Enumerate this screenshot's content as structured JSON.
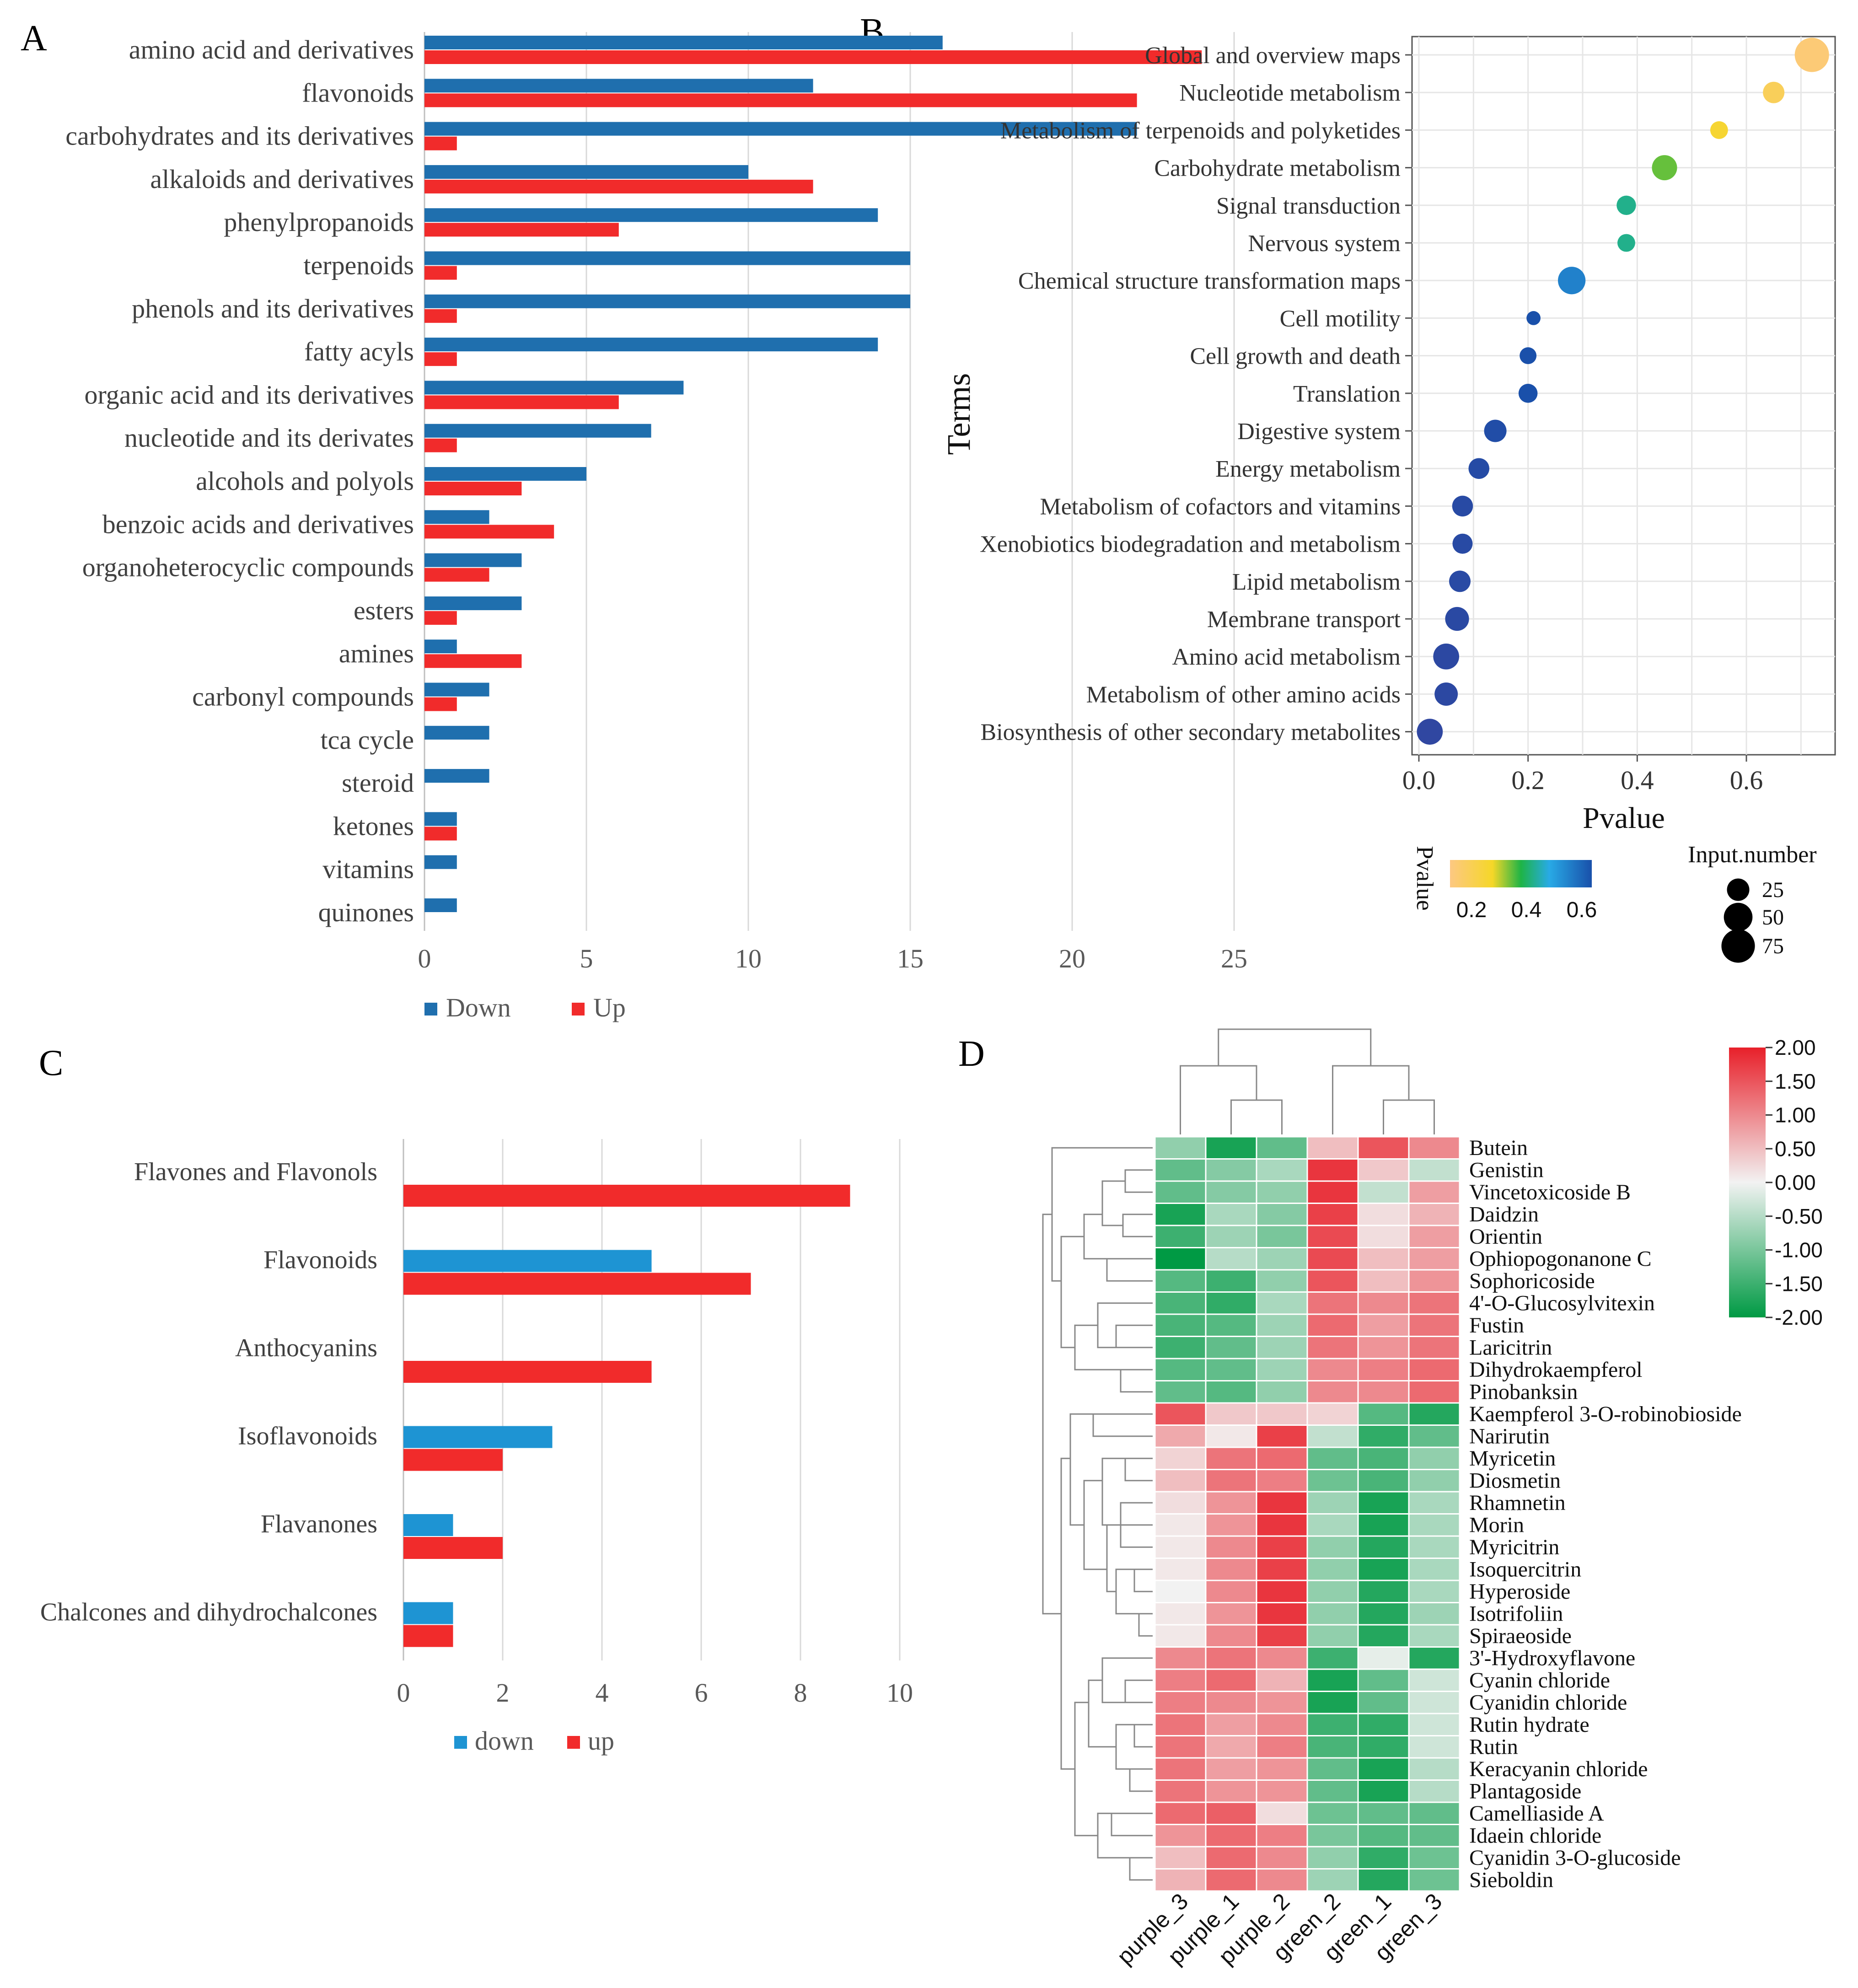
{
  "panels": {
    "A": "A",
    "B": "B",
    "C": "C",
    "D": "D"
  },
  "chart_data": [
    {
      "id": "A",
      "type": "bar",
      "orientation": "horizontal",
      "categories": [
        "amino acid and derivatives",
        "flavonoids",
        "carbohydrates and its derivatives",
        "alkaloids and derivatives",
        "phenylpropanoids",
        "terpenoids",
        "phenols and its derivatives",
        "fatty acyls",
        "organic acid and its derivatives",
        "nucleotide and its derivates",
        "alcohols and polyols",
        "benzoic acids and derivatives",
        "organoheterocyclic compounds",
        "esters",
        "amines",
        "carbonyl compounds",
        "tca cycle",
        "steroid",
        "ketones",
        "vitamins",
        "quinones"
      ],
      "series": [
        {
          "name": "Down",
          "color": "#1f6fae",
          "values": [
            16,
            12,
            22,
            10,
            14,
            15,
            15,
            14,
            8,
            7,
            5,
            2,
            3,
            3,
            1,
            2,
            2,
            2,
            1,
            1,
            1
          ]
        },
        {
          "name": "Up",
          "color": "#f12b2b",
          "values": [
            24,
            22,
            1,
            12,
            6,
            1,
            1,
            1,
            6,
            1,
            3,
            4,
            2,
            1,
            3,
            1,
            0,
            0,
            1,
            0,
            0
          ]
        }
      ],
      "xlim": [
        0,
        25
      ],
      "xticks": [
        0,
        5,
        10,
        15,
        20,
        25
      ],
      "grid": true,
      "legend": "bottom"
    },
    {
      "id": "B",
      "type": "scatter",
      "ylabel": "Terms",
      "xlabel": "Pvalue",
      "xlim": [
        0,
        0.75
      ],
      "xticks": [
        0.0,
        0.2,
        0.4,
        0.6
      ],
      "xtick_labels": [
        "0.0",
        "0.2",
        "0.4",
        "0.6"
      ],
      "terms": [
        "Global and overview maps",
        "Nucleotide metabolism",
        "Metabolism of terpenoids and polyketides",
        "Carbohydrate metabolism",
        "Signal transduction",
        "Nervous system",
        "Chemical structure transformation maps",
        "Cell motility",
        "Cell growth and death",
        "Translation",
        "Digestive system",
        "Energy metabolism",
        "Metabolism of cofactors and vitamins",
        "Xenobiotics biodegradation and metabolism",
        "Lipid metabolism",
        "Membrane transport",
        "Amino acid metabolism",
        "Metabolism of other amino acids",
        "Biosynthesis of other secondary metabolites"
      ],
      "pvalues": [
        0.72,
        0.65,
        0.55,
        0.45,
        0.38,
        0.38,
        0.28,
        0.21,
        0.2,
        0.2,
        0.14,
        0.11,
        0.08,
        0.08,
        0.075,
        0.07,
        0.05,
        0.05,
        0.02
      ],
      "input_numbers": [
        80,
        22,
        12,
        35,
        16,
        12,
        45,
        5,
        10,
        15,
        25,
        20,
        20,
        18,
        22,
        30,
        38,
        28,
        38
      ],
      "legend_color_title": "Pvalue",
      "legend_color_ticks": [
        "0.2",
        "0.4",
        "0.6"
      ],
      "legend_size_title": "Input.number",
      "legend_size_ticks": [
        "25",
        "50",
        "75"
      ],
      "legend_size_values": [
        25,
        50,
        75
      ]
    },
    {
      "id": "C",
      "type": "bar",
      "orientation": "horizontal",
      "categories": [
        "Flavones and Flavonols",
        "Flavonoids",
        "Anthocyanins",
        "Isoflavonoids",
        "Flavanones",
        "Chalcones and dihydrochalcones"
      ],
      "series": [
        {
          "name": "down",
          "color": "#1e94d3",
          "values": [
            0,
            5,
            0,
            3,
            1,
            1
          ]
        },
        {
          "name": "up",
          "color": "#f12b2b",
          "values": [
            9,
            7,
            5,
            2,
            2,
            1
          ]
        }
      ],
      "xlim": [
        0,
        10
      ],
      "xticks": [
        0,
        2,
        4,
        6,
        8,
        10
      ],
      "grid": true,
      "legend": "bottom"
    },
    {
      "id": "D",
      "type": "heatmap",
      "columns": [
        "purple_3",
        "purple_1",
        "purple_2",
        "green_2",
        "green_1",
        "green_3"
      ],
      "rows": [
        "Butein",
        "Genistin",
        "Vincetoxicoside B",
        "Daidzin",
        "Orientin",
        "Ophiopogonanone C",
        "Sophoricoside",
        "4'-O-Glucosylvitexin",
        "Fustin",
        "Laricitrin",
        "Dihydrokaempferol",
        "Pinobanksin",
        "Kaempferol 3-O-robinobioside",
        "Narirutin",
        "Myricetin",
        "Diosmetin",
        "Rhamnetin",
        "Morin",
        "Myricitrin",
        "Isoquercitrin",
        "Hyperoside",
        "Isotrifoliin",
        "Spiraeoside",
        "3'-Hydroxyflavone",
        "Cyanin chloride",
        "Cyanidin chloride",
        "Rutin hydrate",
        "Rutin",
        "Keracyanin chloride",
        "Plantagoside",
        "Camelliaside A",
        "Idaein chloride",
        "Cyanidin 3-O-glucoside",
        "Sieboldin"
      ],
      "values": [
        [
          -0.8,
          -1.8,
          -1.2,
          0.5,
          1.5,
          1.0
        ],
        [
          -1.2,
          -0.9,
          -0.6,
          1.8,
          0.4,
          -0.4
        ],
        [
          -1.2,
          -0.9,
          -0.8,
          1.8,
          -0.4,
          0.8
        ],
        [
          -1.8,
          -0.6,
          -0.9,
          1.7,
          0.2,
          0.6
        ],
        [
          -1.5,
          -0.7,
          -1.0,
          1.6,
          0.2,
          0.8
        ],
        [
          -2.0,
          -0.5,
          -0.7,
          1.6,
          0.5,
          0.8
        ],
        [
          -1.3,
          -1.5,
          -0.8,
          1.5,
          0.5,
          0.9
        ],
        [
          -1.4,
          -1.6,
          -0.6,
          1.2,
          1.0,
          1.2
        ],
        [
          -1.4,
          -1.3,
          -0.7,
          1.3,
          0.8,
          1.2
        ],
        [
          -1.5,
          -1.2,
          -0.7,
          1.2,
          0.9,
          1.2
        ],
        [
          -1.3,
          -1.2,
          -0.7,
          1.0,
          1.1,
          1.3
        ],
        [
          -1.2,
          -1.3,
          -0.8,
          1.0,
          1.0,
          1.3
        ],
        [
          1.5,
          0.4,
          0.4,
          0.3,
          -1.3,
          -1.7
        ],
        [
          0.7,
          0.1,
          1.7,
          -0.4,
          -1.6,
          -1.2
        ],
        [
          0.3,
          1.2,
          1.3,
          -1.2,
          -1.4,
          -0.8
        ],
        [
          0.5,
          1.2,
          1.1,
          -1.1,
          -1.4,
          -0.8
        ],
        [
          0.2,
          0.9,
          1.8,
          -0.7,
          -1.8,
          -0.6
        ],
        [
          0.1,
          0.9,
          1.8,
          -0.6,
          -1.8,
          -0.6
        ],
        [
          0.1,
          1.0,
          1.7,
          -0.8,
          -1.7,
          -0.6
        ],
        [
          0.1,
          1.0,
          1.7,
          -0.8,
          -1.8,
          -0.6
        ],
        [
          0.0,
          1.0,
          1.8,
          -0.8,
          -1.7,
          -0.6
        ],
        [
          0.1,
          0.9,
          1.8,
          -0.8,
          -1.7,
          -0.7
        ],
        [
          0.1,
          1.0,
          1.7,
          -0.8,
          -1.7,
          -0.6
        ],
        [
          1.0,
          1.2,
          1.0,
          -1.5,
          -0.1,
          -1.7
        ],
        [
          1.1,
          1.3,
          0.6,
          -1.8,
          -1.2,
          -0.3
        ],
        [
          1.1,
          1.0,
          0.9,
          -1.8,
          -1.2,
          -0.3
        ],
        [
          1.2,
          0.8,
          1.0,
          -1.5,
          -1.6,
          -0.3
        ],
        [
          1.2,
          0.7,
          1.1,
          -1.4,
          -1.6,
          -0.3
        ],
        [
          1.2,
          0.8,
          0.9,
          -1.2,
          -1.8,
          -0.5
        ],
        [
          1.2,
          0.9,
          0.9,
          -1.2,
          -1.8,
          -0.5
        ],
        [
          1.3,
          1.4,
          0.2,
          -1.1,
          -1.2,
          -1.2
        ],
        [
          0.9,
          1.3,
          1.1,
          -1.0,
          -1.3,
          -1.2
        ],
        [
          0.5,
          1.3,
          1.0,
          -0.8,
          -1.6,
          -1.1
        ],
        [
          0.6,
          1.3,
          1.0,
          -0.7,
          -1.7,
          -1.1
        ]
      ],
      "color_scale": {
        "min": -2,
        "max": 2,
        "low": "#009a44",
        "mid": "#f2f2f2",
        "high": "#e8202a"
      },
      "colorbar_ticks": [
        "2.00",
        "1.50",
        "1.00",
        "0.50",
        "0.00",
        "-0.50",
        "-1.00",
        "-1.50",
        "-2.00"
      ]
    }
  ]
}
